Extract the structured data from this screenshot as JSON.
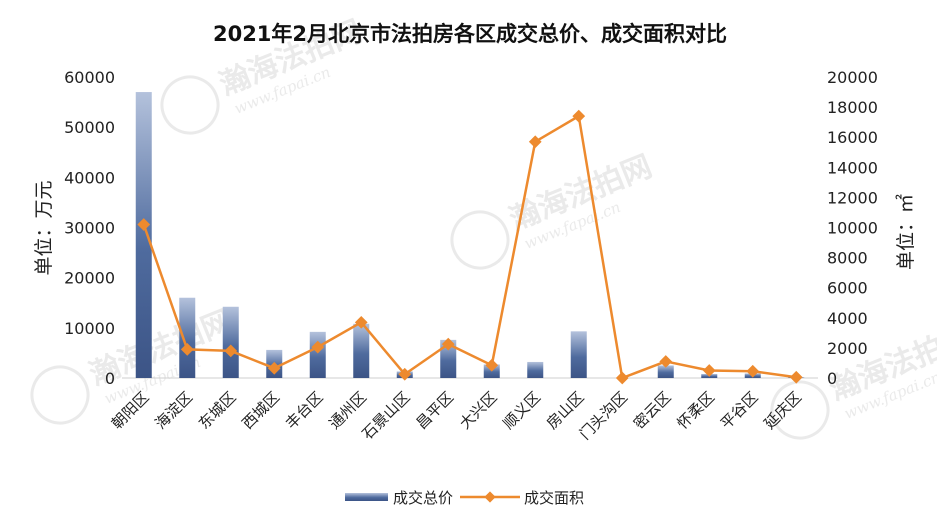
{
  "chart_data": {
    "type": "bar",
    "title": "2021年2月北京市法拍房各区成交总价、成交面积对比",
    "categories": [
      "朝阳区",
      "海淀区",
      "东城区",
      "西城区",
      "丰台区",
      "通州区",
      "石景山区",
      "昌平区",
      "大兴区",
      "顺义区",
      "房山区",
      "门头沟区",
      "密云区",
      "怀柔区",
      "平谷区",
      "延庆区"
    ],
    "series": [
      {
        "name": "成交总价",
        "type": "bar",
        "axis": "left",
        "color": "#4a6496",
        "values": [
          57000,
          16000,
          14200,
          5600,
          9200,
          10800,
          1300,
          7600,
          2700,
          3200,
          9300,
          0,
          2500,
          800,
          900,
          100
        ]
      },
      {
        "name": "成交面积",
        "type": "line",
        "axis": "right",
        "color": "#ed8a2e",
        "values": [
          10200,
          1900,
          1800,
          650,
          2050,
          3700,
          250,
          2250,
          850,
          15700,
          17400,
          0,
          1100,
          500,
          450,
          50
        ]
      }
    ],
    "y_left": {
      "label": "单位：万元",
      "min": 0,
      "max": 60000,
      "ticks": [
        "0",
        "10000",
        "20000",
        "30000",
        "40000",
        "50000",
        "60000"
      ]
    },
    "y_right": {
      "label": "单位：㎡",
      "min": 0,
      "max": 20000,
      "ticks": [
        "0",
        "2000",
        "4000",
        "6000",
        "8000",
        "10000",
        "12000",
        "14000",
        "16000",
        "18000",
        "20000"
      ]
    },
    "legend_position": "bottom",
    "grid": false,
    "watermark": {
      "main": "瀚海法拍网",
      "sub": "www.fapai.cn"
    }
  }
}
